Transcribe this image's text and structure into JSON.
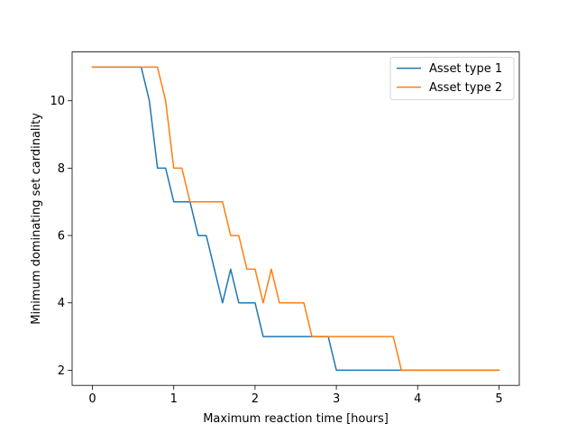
{
  "chart_data": {
    "type": "line",
    "title": "",
    "xlabel": "Maximum reaction time [hours]",
    "ylabel": "Minimum dominating set cardinality",
    "xlim": [
      -0.25,
      5.25
    ],
    "ylim": [
      1.55,
      11.45
    ],
    "xticks": [
      0,
      1,
      2,
      3,
      4,
      5
    ],
    "xtick_labels": [
      "0",
      "1",
      "2",
      "3",
      "4",
      "5"
    ],
    "yticks": [
      2,
      4,
      6,
      8,
      10
    ],
    "ytick_labels": [
      "2",
      "4",
      "6",
      "8",
      "10"
    ],
    "grid": false,
    "legend_position": "top-right",
    "x": [
      0.0,
      0.1,
      0.2,
      0.3,
      0.4,
      0.5,
      0.6,
      0.7,
      0.8,
      0.9,
      1.0,
      1.1,
      1.2,
      1.3,
      1.4,
      1.5,
      1.6,
      1.7,
      1.8,
      1.9,
      2.0,
      2.1,
      2.2,
      2.3,
      2.4,
      2.5,
      2.6,
      2.7,
      2.8,
      2.9,
      3.0,
      3.1,
      3.2,
      3.3,
      3.4,
      3.5,
      3.6,
      3.7,
      3.8,
      3.9,
      4.0,
      4.1,
      4.2,
      4.3,
      4.4,
      4.5,
      4.6,
      4.7,
      4.8,
      4.9,
      5.0
    ],
    "series": [
      {
        "name": "Asset type 1",
        "color": "#1f77b4",
        "values": [
          11,
          11,
          11,
          11,
          11,
          11,
          11,
          10,
          8,
          8,
          7,
          7,
          7,
          6,
          6,
          5,
          4,
          5,
          4,
          4,
          4,
          3,
          3,
          3,
          3,
          3,
          3,
          3,
          3,
          3,
          2,
          2,
          2,
          2,
          2,
          2,
          2,
          2,
          2,
          2,
          2,
          2,
          2,
          2,
          2,
          2,
          2,
          2,
          2,
          2,
          2
        ]
      },
      {
        "name": "Asset type 2",
        "color": "#ff7f0e",
        "values": [
          11,
          11,
          11,
          11,
          11,
          11,
          11,
          11,
          11,
          10,
          8,
          8,
          7,
          7,
          7,
          7,
          7,
          6,
          6,
          5,
          5,
          4,
          5,
          4,
          4,
          4,
          4,
          3,
          3,
          3,
          3,
          3,
          3,
          3,
          3,
          3,
          3,
          3,
          2,
          2,
          2,
          2,
          2,
          2,
          2,
          2,
          2,
          2,
          2,
          2,
          2
        ]
      }
    ]
  }
}
